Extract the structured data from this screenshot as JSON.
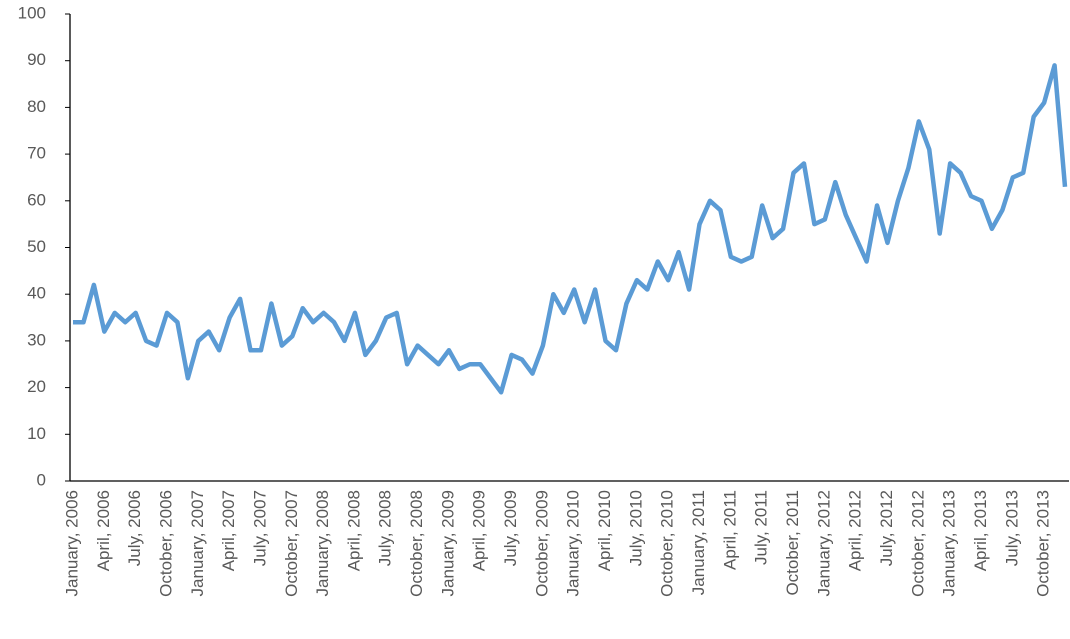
{
  "chart_data": {
    "type": "line",
    "categories": [
      "January, 2006",
      null,
      null,
      "April, 2006",
      null,
      null,
      "July, 2006",
      null,
      null,
      "October, 2006",
      null,
      null,
      "January, 2007",
      null,
      null,
      "April, 2007",
      null,
      null,
      "July, 2007",
      null,
      null,
      "October, 2007",
      null,
      null,
      "January, 2008",
      null,
      null,
      "April, 2008",
      null,
      null,
      "July, 2008",
      null,
      null,
      "October, 2008",
      null,
      null,
      "January, 2009",
      null,
      null,
      "April, 2009",
      null,
      null,
      "July, 2009",
      null,
      null,
      "October, 2009",
      null,
      null,
      "January, 2010",
      null,
      null,
      "April, 2010",
      null,
      null,
      "July, 2010",
      null,
      null,
      "October, 2010",
      null,
      null,
      "January, 2011",
      null,
      null,
      "April, 2011",
      null,
      null,
      "July, 2011",
      null,
      null,
      "October, 2011",
      null,
      null,
      "January, 2012",
      null,
      null,
      "April, 2012",
      null,
      null,
      "July, 2012",
      null,
      null,
      "October, 2012",
      null,
      null,
      "January, 2013",
      null,
      null,
      "April, 2013",
      null,
      null,
      "July, 2013",
      null,
      null,
      "October, 2013",
      null,
      null
    ],
    "values": [
      34,
      34,
      42,
      32,
      36,
      34,
      36,
      30,
      29,
      36,
      34,
      22,
      30,
      32,
      28,
      35,
      39,
      28,
      28,
      38,
      29,
      31,
      37,
      34,
      36,
      34,
      30,
      36,
      27,
      30,
      35,
      36,
      25,
      29,
      27,
      25,
      28,
      24,
      25,
      25,
      22,
      19,
      27,
      26,
      23,
      29,
      40,
      36,
      41,
      34,
      41,
      30,
      28,
      38,
      43,
      41,
      47,
      43,
      49,
      41,
      55,
      60,
      58,
      48,
      47,
      48,
      59,
      52,
      54,
      66,
      68,
      55,
      56,
      64,
      57,
      52,
      47,
      59,
      51,
      60,
      67,
      77,
      71,
      53,
      68,
      66,
      61,
      60,
      54,
      58,
      65,
      66,
      78,
      81,
      89,
      63
    ],
    "color": "#5b9bd5",
    "ylim": [
      0,
      100
    ],
    "yticks": [
      0,
      10,
      20,
      30,
      40,
      50,
      60,
      70,
      80,
      90,
      100
    ]
  }
}
